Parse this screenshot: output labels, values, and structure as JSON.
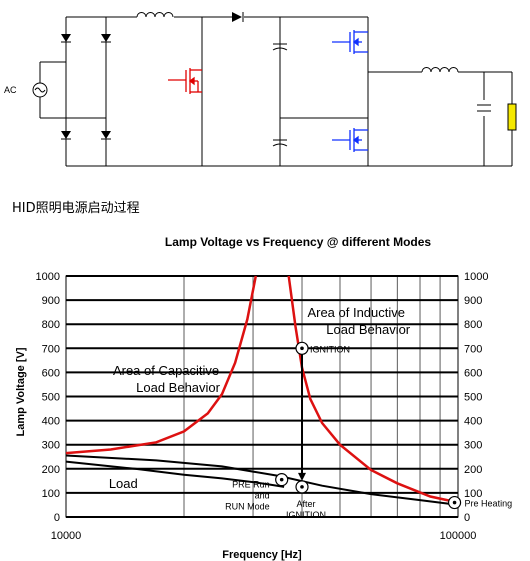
{
  "circuit": {
    "ac_label": "AC"
  },
  "caption": "HID照明电源启动过程",
  "chart_data": {
    "type": "line",
    "title": "Lamp Voltage vs Frequency @ different Modes",
    "xlabel": "Frequency [Hz]",
    "ylabel": "Lamp Voltage [V]",
    "xscale": "log",
    "xlim": [
      10000,
      100000
    ],
    "ylim": [
      0,
      1000
    ],
    "x_tick_labels": [
      "10000",
      "100000"
    ],
    "y_ticks": [
      0,
      100,
      200,
      300,
      400,
      500,
      600,
      700,
      800,
      900,
      1000
    ],
    "grid": true,
    "series": [
      {
        "color": "#dd1111",
        "x": [
          10000,
          13000,
          17000,
          20000,
          23000,
          25000,
          27000,
          29000,
          30500
        ],
        "y": [
          265,
          280,
          310,
          355,
          430,
          510,
          640,
          820,
          1000
        ]
      },
      {
        "color": "#dd1111",
        "x": [
          37000,
          38500,
          40000,
          42000,
          45000,
          50000,
          60000,
          70000,
          85000,
          100000
        ],
        "y": [
          1000,
          790,
          620,
          490,
          390,
          300,
          195,
          140,
          85,
          60
        ]
      },
      {
        "color": "#000000",
        "x": [
          10000,
          15000,
          20000,
          25000,
          30000,
          33000,
          36000
        ],
        "y": [
          230,
          200,
          175,
          160,
          145,
          135,
          125
        ]
      },
      {
        "color": "#000000",
        "x": [
          10000,
          17000,
          25000,
          35000,
          45000,
          60000,
          80000,
          100000
        ],
        "y": [
          255,
          235,
          210,
          170,
          130,
          95,
          70,
          50
        ]
      }
    ],
    "markers": [
      {
        "x": 40000,
        "y": 700,
        "label": "IGNITION"
      },
      {
        "x": 35500,
        "y": 155,
        "label": "PRE Run\nand\nRUN Mode"
      },
      {
        "x": 40000,
        "y": 125,
        "label": "After\nIGNITION"
      },
      {
        "x": 98000,
        "y": 60,
        "label": "Pre Heating"
      }
    ],
    "annotations": [
      {
        "text": "Area of Inductive\nLoad Behavior",
        "x": 55000,
        "y": 830
      },
      {
        "text": "Area of Capacitive\nLoad Behavior",
        "x": 18000,
        "y": 590
      },
      {
        "text": "Load",
        "x": 14000,
        "y": 120
      }
    ]
  }
}
